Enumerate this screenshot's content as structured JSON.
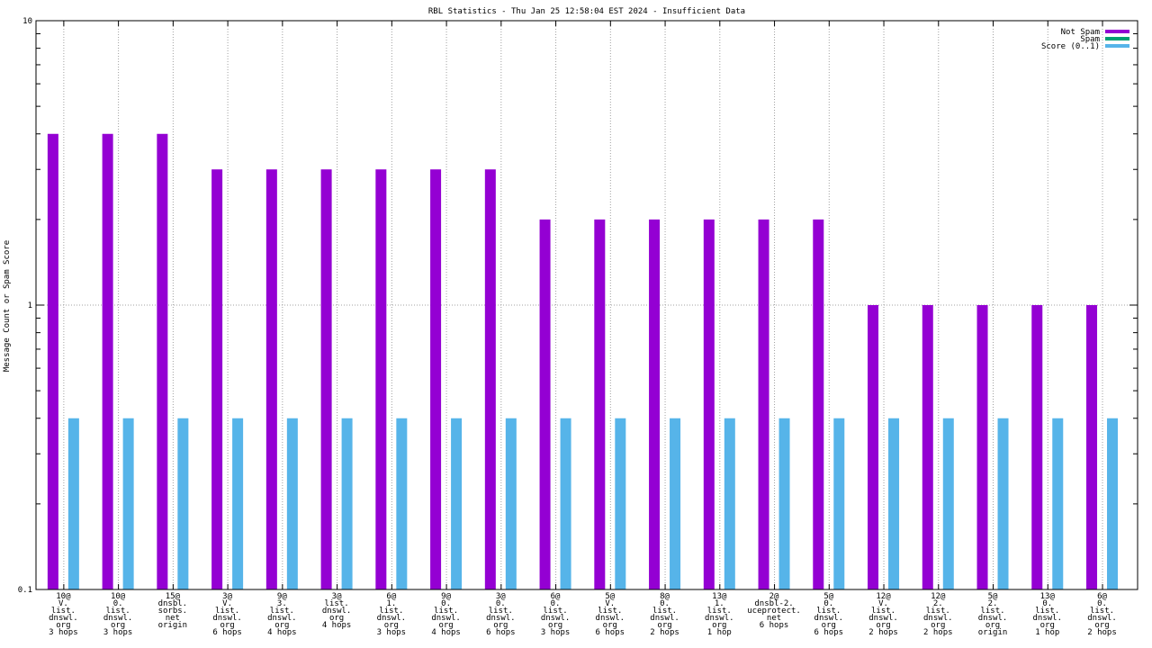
{
  "chart_data": {
    "type": "bar",
    "title": "RBL Statistics - Thu Jan 25 12:58:04 EST 2024 - Insufficient Data",
    "ylabel": "Message Count or Spam Score",
    "xlabel": "",
    "yscale": "log",
    "ylim": [
      0.1,
      10
    ],
    "yticks": [
      {
        "value": 0.1,
        "label": "0.1"
      },
      {
        "value": 1,
        "label": "1"
      },
      {
        "value": 10,
        "label": "10"
      }
    ],
    "grid": true,
    "legend_position": "top-right",
    "categories": [
      [
        "10@",
        "V.",
        "list.",
        "dnswl.",
        "org",
        "3 hops"
      ],
      [
        "10@",
        "0.",
        "list.",
        "dnswl.",
        "org",
        "3 hops"
      ],
      [
        "15@",
        "dnsbl.",
        "sorbs.",
        "net",
        "origin"
      ],
      [
        "3@",
        "V.",
        "list.",
        "dnswl.",
        "org",
        "6 hops"
      ],
      [
        "9@",
        "3.",
        "list.",
        "dnswl.",
        "org",
        "4 hops"
      ],
      [
        "3@",
        "list.",
        "dnswl.",
        "org",
        "4 hops"
      ],
      [
        "6@",
        "1.",
        "list.",
        "dnswl.",
        "org",
        "3 hops"
      ],
      [
        "9@",
        "0.",
        "list.",
        "dnswl.",
        "org",
        "4 hops"
      ],
      [
        "3@",
        "0.",
        "list.",
        "dnswl.",
        "org",
        "6 hops"
      ],
      [
        "6@",
        "0.",
        "list.",
        "dnswl.",
        "org",
        "3 hops"
      ],
      [
        "5@",
        "V.",
        "list.",
        "dnswl.",
        "org",
        "6 hops"
      ],
      [
        "8@",
        "0.",
        "list.",
        "dnswl.",
        "org",
        "2 hops"
      ],
      [
        "13@",
        "1.",
        "list.",
        "dnswl.",
        "org",
        "1 hop"
      ],
      [
        "2@",
        "dnsbl-2.",
        "uceprotect.",
        "net",
        "6 hops"
      ],
      [
        "5@",
        "0.",
        "list.",
        "dnswl.",
        "org",
        "6 hops"
      ],
      [
        "12@",
        "V.",
        "list.",
        "dnswl.",
        "org",
        "2 hops"
      ],
      [
        "12@",
        "2.",
        "list.",
        "dnswl.",
        "org",
        "2 hops"
      ],
      [
        "5@",
        "2.",
        "list.",
        "dnswl.",
        "org",
        "origin"
      ],
      [
        "13@",
        "0.",
        "list.",
        "dnswl.",
        "org",
        "1 hop"
      ],
      [
        "6@",
        "0.",
        "list.",
        "dnswl.",
        "org",
        "2 hops"
      ]
    ],
    "series": [
      {
        "name": "Not Spam",
        "color": "#9400d3",
        "values": [
          4,
          4,
          4,
          3,
          3,
          3,
          3,
          3,
          3,
          2,
          2,
          2,
          2,
          2,
          2,
          1,
          1,
          1,
          1,
          1
        ]
      },
      {
        "name": "Spam",
        "color": "#009e73",
        "values": [
          0,
          0,
          0,
          0,
          0,
          0,
          0,
          0,
          0,
          0,
          0,
          0,
          0,
          0,
          0,
          0,
          0,
          0,
          0,
          0
        ]
      },
      {
        "name": "Score (0..1)",
        "color": "#56b4e9",
        "values": [
          0.4,
          0.4,
          0.4,
          0.4,
          0.4,
          0.4,
          0.4,
          0.4,
          0.4,
          0.4,
          0.4,
          0.4,
          0.4,
          0.4,
          0.4,
          0.4,
          0.4,
          0.4,
          0.4,
          0.4
        ]
      }
    ]
  }
}
